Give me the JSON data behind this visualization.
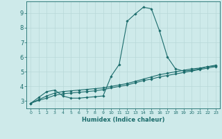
{
  "xlabel": "Humidex (Indice chaleur)",
  "ylabel": "",
  "bg_color": "#ceeaea",
  "grid_color": "#b8d8d8",
  "line_color": "#1a6b6b",
  "xlim": [
    -0.5,
    23.5
  ],
  "ylim": [
    2.5,
    9.8
  ],
  "x_ticks": [
    0,
    1,
    2,
    3,
    4,
    5,
    6,
    7,
    8,
    9,
    10,
    11,
    12,
    13,
    14,
    15,
    16,
    17,
    18,
    19,
    20,
    21,
    22,
    23
  ],
  "y_ticks": [
    3,
    4,
    5,
    6,
    7,
    8,
    9
  ],
  "series1_x": [
    0,
    1,
    2,
    3,
    4,
    5,
    6,
    7,
    8,
    9,
    10,
    11,
    12,
    13,
    14,
    15,
    16,
    17,
    18,
    19,
    20,
    21,
    22,
    23
  ],
  "series1_y": [
    2.85,
    3.25,
    3.65,
    3.75,
    3.35,
    3.2,
    3.2,
    3.25,
    3.3,
    3.35,
    4.7,
    5.5,
    8.45,
    8.95,
    9.4,
    9.3,
    7.8,
    6.0,
    5.2,
    5.05,
    5.1,
    5.2,
    5.35,
    5.4
  ],
  "series2_x": [
    0,
    1,
    2,
    3,
    4,
    5,
    6,
    7,
    8,
    9,
    10,
    11,
    12,
    13,
    14,
    15,
    16,
    17,
    18,
    19,
    20,
    21,
    22,
    23
  ],
  "series2_y": [
    2.85,
    3.1,
    3.35,
    3.55,
    3.65,
    3.7,
    3.75,
    3.8,
    3.85,
    3.9,
    4.0,
    4.1,
    4.2,
    4.35,
    4.5,
    4.65,
    4.8,
    4.9,
    5.0,
    5.1,
    5.2,
    5.25,
    5.35,
    5.45
  ],
  "series3_x": [
    0,
    1,
    2,
    3,
    4,
    5,
    6,
    7,
    8,
    9,
    10,
    11,
    12,
    13,
    14,
    15,
    16,
    17,
    18,
    19,
    20,
    21,
    22,
    23
  ],
  "series3_y": [
    2.85,
    3.05,
    3.2,
    3.4,
    3.5,
    3.55,
    3.6,
    3.65,
    3.7,
    3.78,
    3.9,
    4.0,
    4.1,
    4.25,
    4.4,
    4.5,
    4.65,
    4.75,
    4.85,
    4.95,
    5.05,
    5.15,
    5.25,
    5.35
  ],
  "marker": "D",
  "marker_size": 1.8,
  "linewidth": 0.8
}
